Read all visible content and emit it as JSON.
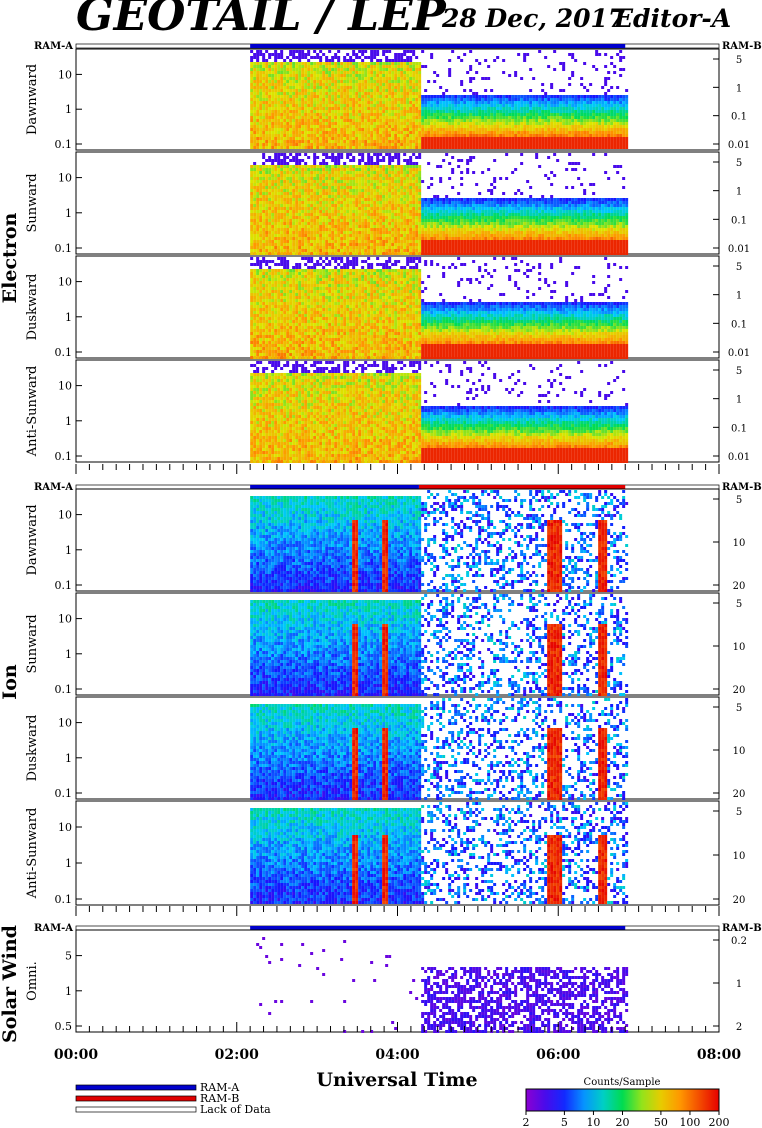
{
  "header": {
    "title": "GEOTAIL / LEP",
    "date": "28 Dec, 2017",
    "editor": "Editor-A"
  },
  "chart_data": {
    "type": "heatmap",
    "xlabel": "Universal Time",
    "x_range": [
      "00:00",
      "08:00"
    ],
    "x_ticks": [
      "00:00",
      "02:00",
      "04:00",
      "06:00",
      "08:00"
    ],
    "data_coverage": {
      "start": "02:10",
      "end": "06:50"
    },
    "ram_labels": {
      "left": "RAM-A",
      "right": "RAM-B"
    },
    "groups": [
      {
        "name": "Electron",
        "left_ticks": [
          "0.1",
          "1",
          "10"
        ],
        "right_ticks": [
          "5",
          "1",
          "0.1",
          "0.01"
        ],
        "ram_bar": [
          {
            "start": "02:10",
            "end": "06:50",
            "state": "RAM-A"
          }
        ],
        "panels": [
          {
            "label": "Dawnward",
            "level_before_0416": "high (20-100 counts)",
            "level_after_0416": "low; red band at lowest energies"
          },
          {
            "label": "Sunward",
            "level_before_0416": "high (20-100 counts)",
            "level_after_0416": "low; red band at lowest energies"
          },
          {
            "label": "Duskward",
            "level_before_0416": "high (20-100 counts)",
            "level_after_0416": "low; red band at lowest energies"
          },
          {
            "label": "Anti-Sunward",
            "level_before_0416": "high (20-100 counts)",
            "level_after_0416": "low; red band at lowest energies"
          }
        ]
      },
      {
        "name": "Ion",
        "left_ticks": [
          "0.1",
          "1",
          "10"
        ],
        "right_ticks": [
          "5",
          "10",
          "20"
        ],
        "ram_bar": [
          {
            "start": "02:10",
            "end": "04:16",
            "state": "RAM-A"
          },
          {
            "start": "04:16",
            "end": "06:50",
            "state": "RAM-B"
          }
        ],
        "panels": [
          {
            "label": "Dawnward",
            "level_before_0416": "moderate (10-20 counts)",
            "level_after_0416": "sparse, red bursts near 05:50-06:30"
          },
          {
            "label": "Sunward",
            "level_before_0416": "moderate (10-20 counts)",
            "level_after_0416": "sparse, red bursts near 05:50-06:30"
          },
          {
            "label": "Duskward",
            "level_before_0416": "moderate (10-20 counts)",
            "level_after_0416": "sparse, red bursts near 05:50-06:30"
          },
          {
            "label": "Anti-Sunward",
            "level_before_0416": "moderate (10-20 counts)",
            "level_after_0416": "sparse, red bursts near 05:50-06:30"
          }
        ]
      },
      {
        "name": "Solar Wind",
        "left_ticks": [
          "0.5",
          "1",
          "5"
        ],
        "right_ticks": [
          "0.2",
          "1",
          "2"
        ],
        "ram_bar": [
          {
            "start": "02:10",
            "end": "06:50",
            "state": "RAM-A"
          }
        ],
        "panels": [
          {
            "label": "Omni.",
            "level_before_0416": "nearly empty",
            "level_after_0416": "purple/blue counts (2-5)"
          }
        ]
      }
    ],
    "legend": [
      {
        "label": "RAM-A",
        "color": "#0000cc"
      },
      {
        "label": "RAM-B",
        "color": "#e00000"
      },
      {
        "label": "Lack of Data",
        "color": "#ffffff"
      }
    ],
    "colorbar": {
      "title": "Counts/Sample",
      "ticks": [
        "2",
        "5",
        "10",
        "20",
        "50",
        "100",
        "200"
      ],
      "scale": "log",
      "range": [
        2,
        200
      ]
    }
  }
}
